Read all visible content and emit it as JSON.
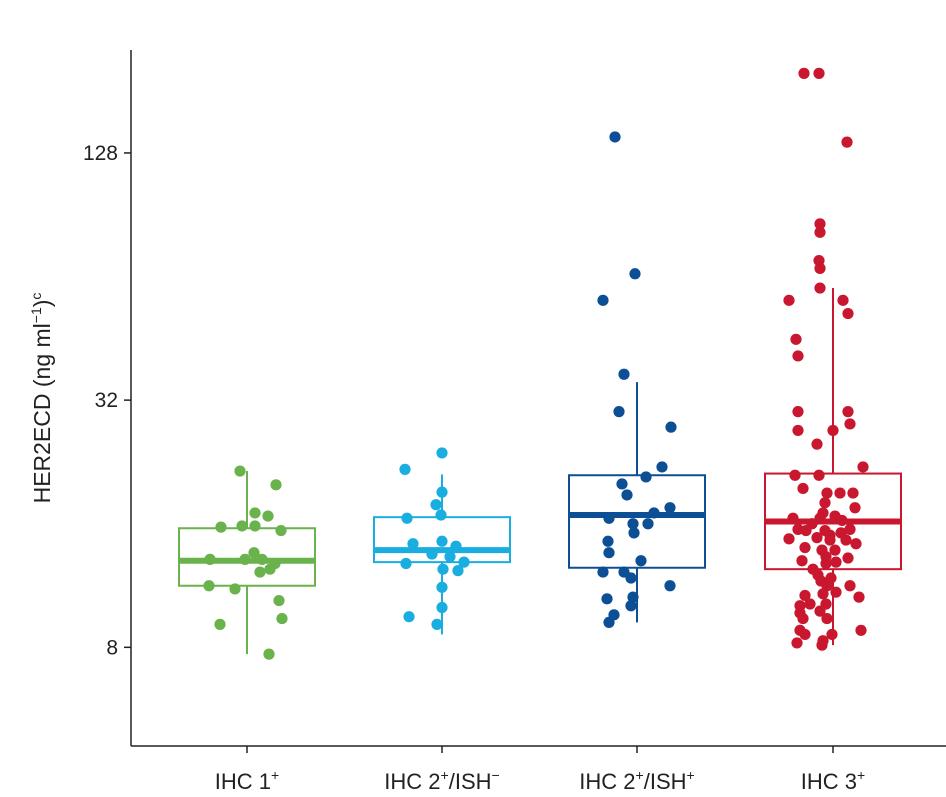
{
  "chart_data": {
    "type": "box",
    "ylabel": "HER2ECD (ng ml",
    "ylabel_sup1": "−1",
    "ylabel_close": ")",
    "ylabel_sup2": "c",
    "yscale": "log2",
    "ylim": [
      4.6,
      228
    ],
    "yticks": [
      8,
      32,
      128
    ],
    "grid": false,
    "categories": [
      {
        "base": "IHC 1",
        "sup": "+",
        "mid": "",
        "sup2": ""
      },
      {
        "base": "IHC 2",
        "sup": "+",
        "mid": "/ISH",
        "sup2": "−"
      },
      {
        "base": "IHC 2",
        "sup": "+",
        "mid": "/ISH",
        "sup2": "+"
      },
      {
        "base": "IHC 3",
        "sup": "+",
        "mid": "",
        "sup2": ""
      }
    ],
    "colors": [
      "#6ab24c",
      "#1aaee0",
      "#0c4f94",
      "#c8172e"
    ],
    "boxes": [
      {
        "whisker_low": 7.7,
        "q1": 11.3,
        "median": 13.0,
        "q3": 15.6,
        "whisker_high": 21.5
      },
      {
        "whisker_low": 8.6,
        "q1": 12.9,
        "median": 13.8,
        "q3": 16.6,
        "whisker_high": 21.1
      },
      {
        "whisker_low": 9.2,
        "q1": 12.5,
        "median": 16.8,
        "q3": 21.0,
        "whisker_high": 35.4
      },
      {
        "whisker_low": 8.1,
        "q1": 12.4,
        "median": 16.2,
        "q3": 21.2,
        "whisker_high": 60.0
      }
    ],
    "points": [
      [
        [
          -7,
          21.5
        ],
        [
          29,
          19.9
        ],
        [
          21,
          16.7
        ],
        [
          8,
          17.0
        ],
        [
          -26,
          15.7
        ],
        [
          -5,
          15.8
        ],
        [
          8,
          15.8
        ],
        [
          34,
          15.4
        ],
        [
          7,
          13.6
        ],
        [
          -37,
          13.1
        ],
        [
          15,
          13.1
        ],
        [
          -2,
          13.1
        ],
        [
          28,
          12.8
        ],
        [
          23,
          12.4
        ],
        [
          13,
          12.2
        ],
        [
          -38,
          11.3
        ],
        [
          -12,
          11.1
        ],
        [
          32,
          10.4
        ],
        [
          35,
          9.4
        ],
        [
          -27,
          9.1
        ],
        [
          22,
          7.7
        ]
      ],
      [
        [
          0,
          23.8
        ],
        [
          -37,
          21.7
        ],
        [
          0,
          19.1
        ],
        [
          -6,
          17.8
        ],
        [
          -1,
          16.8
        ],
        [
          -35,
          16.5
        ],
        [
          -29,
          14.3
        ],
        [
          0,
          14.5
        ],
        [
          14,
          14.1
        ],
        [
          -10,
          13.5
        ],
        [
          8,
          13.3
        ],
        [
          22,
          12.9
        ],
        [
          -36,
          12.8
        ],
        [
          1,
          12.4
        ],
        [
          16,
          12.3
        ],
        [
          0,
          11.2
        ],
        [
          0,
          10.0
        ],
        [
          -33,
          9.5
        ],
        [
          -5,
          9.1
        ]
      ],
      [
        [
          -22,
          140
        ],
        [
          -2,
          65
        ],
        [
          -34,
          56
        ],
        [
          -13,
          37
        ],
        [
          -18,
          30
        ],
        [
          34,
          27.5
        ],
        [
          25,
          22.0
        ],
        [
          9,
          20.8
        ],
        [
          -15,
          20.0
        ],
        [
          -10,
          18.8
        ],
        [
          33,
          17.5
        ],
        [
          17,
          17.0
        ],
        [
          -28,
          16.5
        ],
        [
          -4,
          16.0
        ],
        [
          11,
          16.0
        ],
        [
          -3,
          15.2
        ],
        [
          -29,
          14.5
        ],
        [
          -28,
          13.6
        ],
        [
          4,
          13.0
        ],
        [
          -34,
          12.2
        ],
        [
          -13,
          12.2
        ],
        [
          -6,
          11.8
        ],
        [
          33,
          11.3
        ],
        [
          -4,
          10.6
        ],
        [
          -30,
          10.5
        ],
        [
          -6,
          10.1
        ],
        [
          -23,
          9.6
        ],
        [
          -28,
          9.2
        ]
      ],
      [
        [
          -29,
          200
        ],
        [
          -14,
          200
        ],
        [
          14,
          136
        ],
        [
          -13,
          86
        ],
        [
          -13,
          82
        ],
        [
          -14,
          70
        ],
        [
          -13,
          67
        ],
        [
          -13,
          60
        ],
        [
          -44,
          56
        ],
        [
          10,
          56
        ],
        [
          15,
          52
        ],
        [
          -37,
          45
        ],
        [
          -35,
          41
        ],
        [
          -35,
          30
        ],
        [
          15,
          30
        ],
        [
          -35,
          27
        ],
        [
          0,
          27
        ],
        [
          17,
          28
        ],
        [
          -16,
          25
        ],
        [
          30,
          22
        ],
        [
          -38,
          21
        ],
        [
          -14,
          21
        ],
        [
          -30,
          19.5
        ],
        [
          -6,
          19
        ],
        [
          7,
          19
        ],
        [
          20,
          19
        ],
        [
          -8,
          18
        ],
        [
          22,
          17.5
        ],
        [
          -10,
          17
        ],
        [
          -40,
          16.5
        ],
        [
          -13,
          16.5
        ],
        [
          2,
          16.7
        ],
        [
          9,
          16.3
        ],
        [
          -21,
          16
        ],
        [
          -35,
          15.5
        ],
        [
          -27,
          15.4
        ],
        [
          -8,
          15.4
        ],
        [
          -3,
          15.0
        ],
        [
          8,
          15.2
        ],
        [
          17,
          15.5
        ],
        [
          -44,
          14.7
        ],
        [
          -16,
          14.8
        ],
        [
          -3,
          14.6
        ],
        [
          13,
          14.6
        ],
        [
          23,
          14.3
        ],
        [
          -28,
          14.0
        ],
        [
          -11,
          13.8
        ],
        [
          2,
          13.8
        ],
        [
          -7,
          13.3
        ],
        [
          -31,
          13.0
        ],
        [
          15,
          13.2
        ],
        [
          -7,
          12.8
        ],
        [
          3,
          12.9
        ],
        [
          -20,
          12.4
        ],
        [
          -15,
          12.0
        ],
        [
          -2,
          11.8
        ],
        [
          -12,
          11.6
        ],
        [
          -6,
          11.3
        ],
        [
          17,
          11.3
        ],
        [
          -28,
          10.7
        ],
        [
          -10,
          10.8
        ],
        [
          3,
          10.9
        ],
        [
          26,
          10.6
        ],
        [
          -33,
          10.1
        ],
        [
          -23,
          10.2
        ],
        [
          -7,
          10.2
        ],
        [
          -33,
          9.7
        ],
        [
          -13,
          9.8
        ],
        [
          -30,
          9.4
        ],
        [
          -6,
          9.4
        ],
        [
          -33,
          8.8
        ],
        [
          -28,
          8.6
        ],
        [
          -1,
          8.6
        ],
        [
          28,
          8.8
        ],
        [
          -10,
          8.3
        ],
        [
          -36,
          8.2
        ],
        [
          -11,
          8.1
        ]
      ]
    ]
  }
}
